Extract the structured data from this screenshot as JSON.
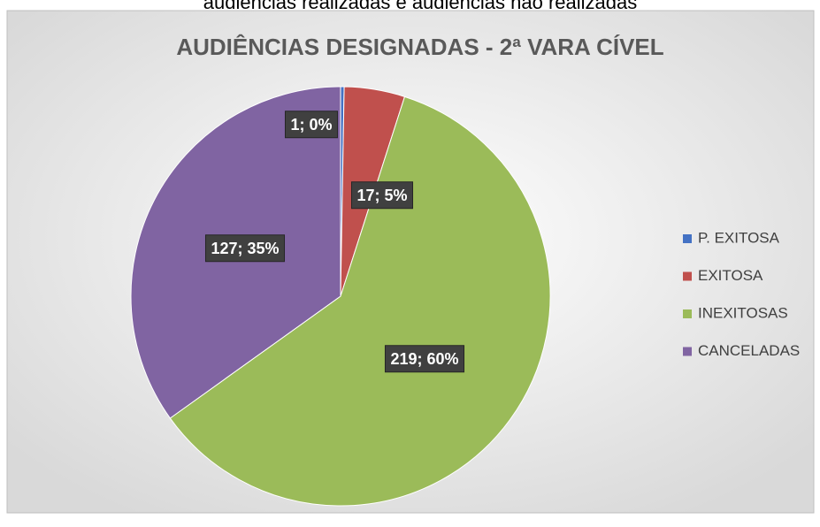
{
  "page_text": "audiências realizadas e audiências não realizadas",
  "chart_data": {
    "type": "pie",
    "title": "AUDIÊNCIAS DESIGNADAS - 2ª VARA CÍVEL",
    "categories": [
      "P. EXITOSA",
      "EXITOSA",
      "INEXITOSAS",
      "CANCELADAS"
    ],
    "values": [
      1,
      17,
      219,
      127
    ],
    "value_labels": [
      "1; 0%",
      "17; 5%",
      "219; 60%",
      "127; 35%"
    ],
    "colors": [
      "#4472c4",
      "#c0504d",
      "#9bbb59",
      "#8064a2"
    ],
    "legend": "right"
  }
}
